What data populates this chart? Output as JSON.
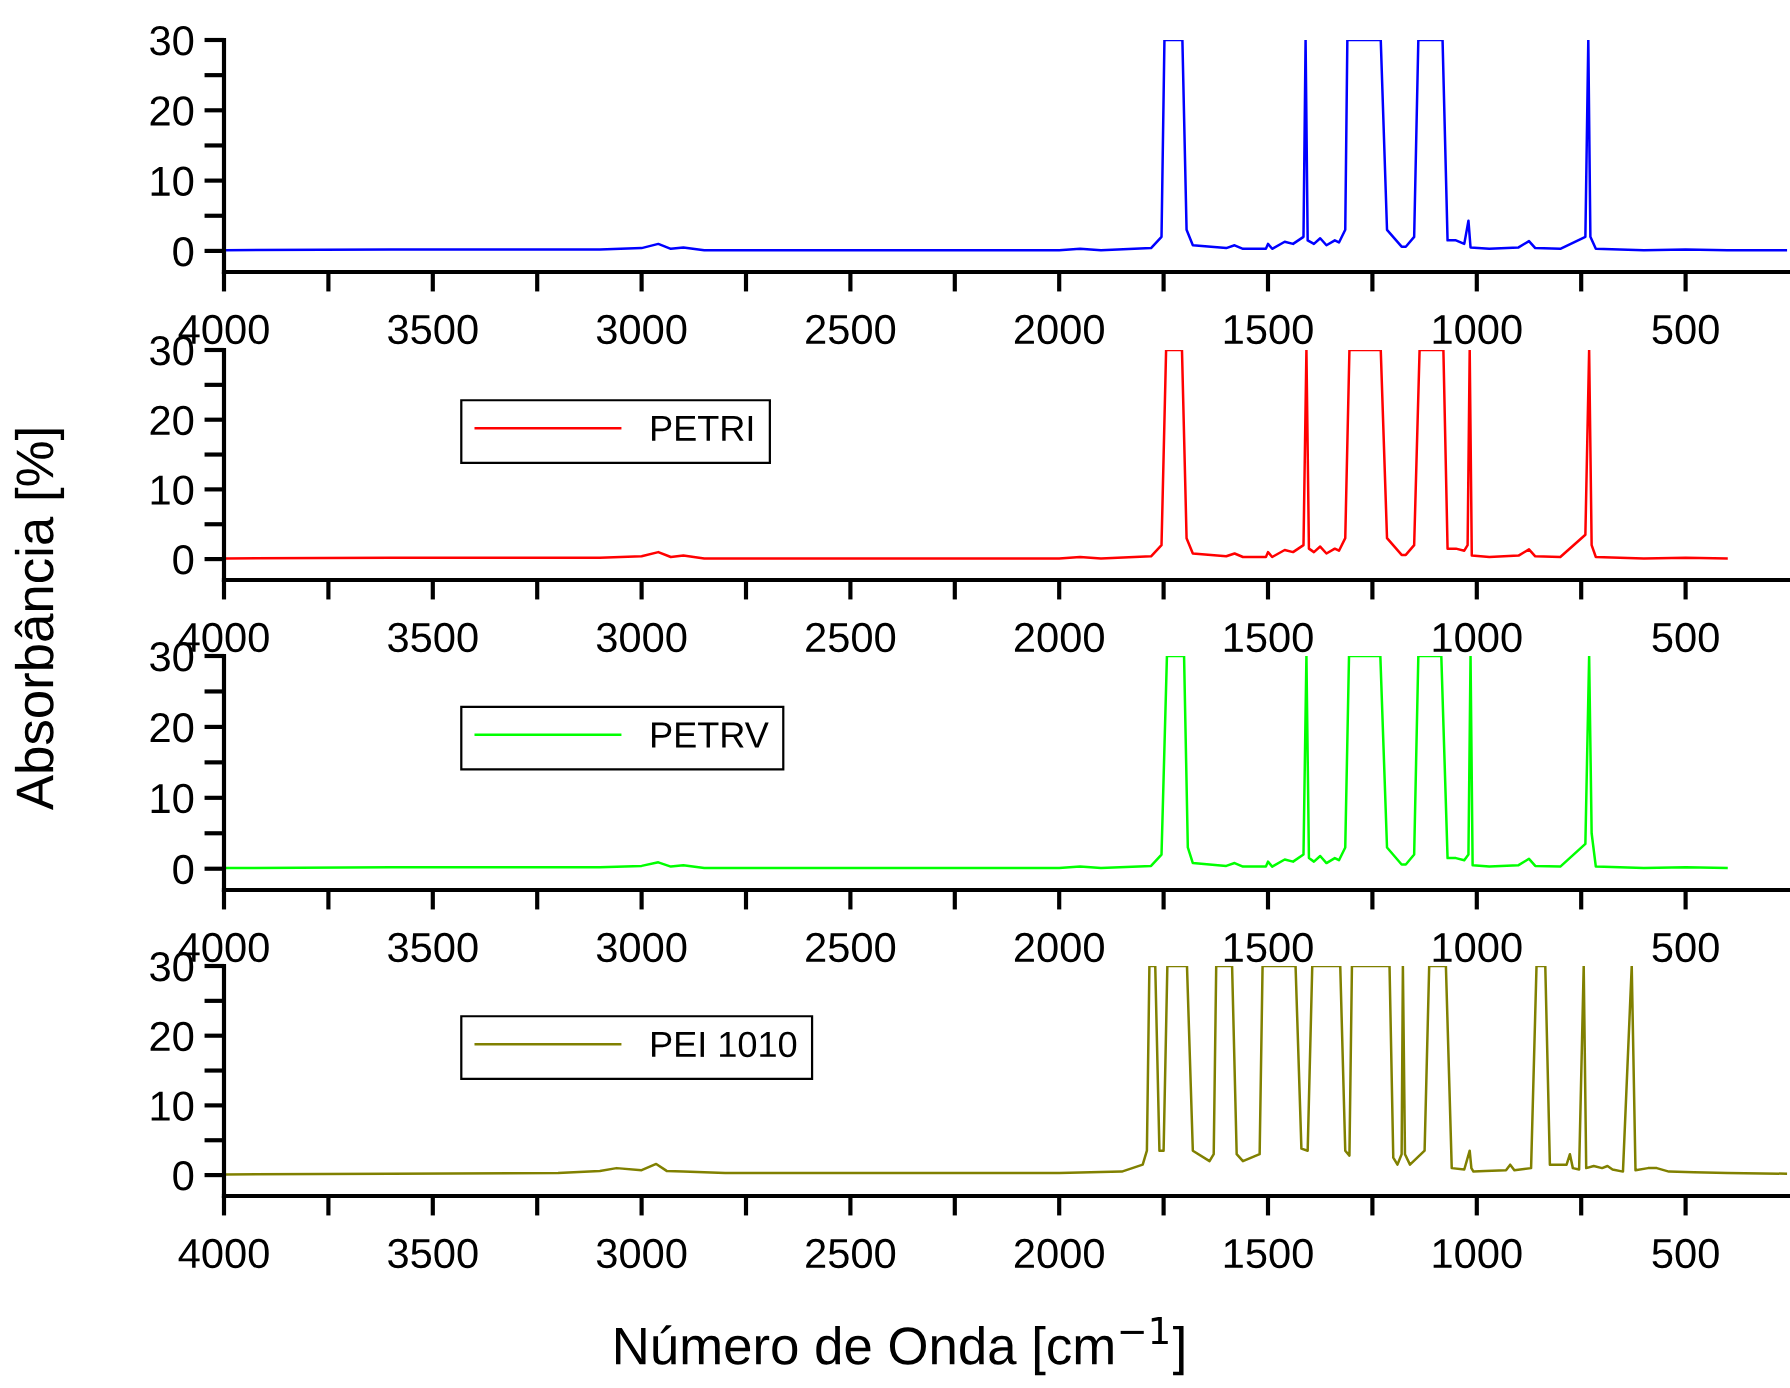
{
  "chart_data": [
    {
      "type": "line",
      "ylabel": "Absorbância [%]",
      "xlim": [
        4000,
        250
      ],
      "ylim": [
        -3,
        30
      ],
      "legend": false,
      "grid": false,
      "xticks": [
        4000,
        {
          "value": 3750,
          "label": null
        },
        3500,
        {
          "value": 3250,
          "label": null
        },
        3000,
        {
          "value": 2750,
          "label": null
        },
        2500,
        {
          "value": 2250,
          "label": null
        },
        2000,
        {
          "value": 1750,
          "label": null
        },
        1500,
        {
          "value": 1250,
          "label": null
        },
        1000,
        {
          "value": 750,
          "label": null
        },
        500
      ],
      "yticks": [
        0,
        {
          "value": 5,
          "label": null
        },
        10,
        {
          "value": 15,
          "label": null
        },
        20,
        {
          "value": 25,
          "label": null
        },
        30
      ],
      "series": [
        {
          "color": "#0000ff",
          "x": [
            4000,
            3600,
            3100,
            3000,
            2960,
            2930,
            2900,
            2850,
            2000,
            1950,
            1900,
            1780,
            1755,
            1748,
            1705,
            1695,
            1680,
            1600,
            1580,
            1560,
            1505,
            1500,
            1490,
            1460,
            1440,
            1415,
            1410,
            1405,
            1390,
            1375,
            1360,
            1340,
            1330,
            1315,
            1310,
            1230,
            1215,
            1180,
            1170,
            1150,
            1140,
            1082,
            1070,
            1050,
            1030,
            1020,
            1015,
            970,
            900,
            875,
            860,
            800,
            740,
            733,
            728,
            715,
            600,
            500,
            400,
            260
          ],
          "values": [
            0.1,
            0.2,
            0.2,
            0.4,
            1.0,
            0.3,
            0.5,
            0.1,
            0.1,
            0.3,
            0.1,
            0.4,
            2,
            30,
            30,
            3,
            0.8,
            0.4,
            0.8,
            0.3,
            0.3,
            1.0,
            0.3,
            1.3,
            1.0,
            2,
            30,
            1.5,
            1.0,
            1.8,
            0.8,
            1.5,
            1.2,
            3,
            30,
            30,
            3,
            0.6,
            0.6,
            2,
            30,
            30,
            1.5,
            1.5,
            1.0,
            4.3,
            0.5,
            0.3,
            0.5,
            1.4,
            0.4,
            0.3,
            2,
            30,
            2,
            0.3,
            0.1,
            0.2,
            0.1,
            0.1
          ]
        }
      ]
    },
    {
      "type": "line",
      "xlim": [
        4000,
        250
      ],
      "ylim": [
        -3,
        30
      ],
      "legend": "top left",
      "grid": false,
      "xticks": [
        4000,
        {
          "value": 3750,
          "label": null
        },
        3500,
        {
          "value": 3250,
          "label": null
        },
        3000,
        {
          "value": 2750,
          "label": null
        },
        2500,
        {
          "value": 2250,
          "label": null
        },
        2000,
        {
          "value": 1750,
          "label": null
        },
        1500,
        {
          "value": 1250,
          "label": null
        },
        1000,
        {
          "value": 750,
          "label": null
        },
        500
      ],
      "yticks": [
        0,
        {
          "value": 5,
          "label": null
        },
        10,
        {
          "value": 15,
          "label": null
        },
        20,
        {
          "value": 25,
          "label": null
        },
        30
      ],
      "series": [
        {
          "name": "PETRI",
          "color": "#ff0000",
          "x": [
            4000,
            3600,
            3100,
            3000,
            2960,
            2930,
            2900,
            2850,
            2000,
            1950,
            1900,
            1780,
            1755,
            1744,
            1706,
            1695,
            1680,
            1600,
            1580,
            1560,
            1505,
            1500,
            1490,
            1460,
            1440,
            1415,
            1408,
            1402,
            1390,
            1375,
            1360,
            1340,
            1330,
            1315,
            1305,
            1230,
            1215,
            1180,
            1170,
            1150,
            1137,
            1080,
            1070,
            1050,
            1030,
            1022,
            1017,
            1012,
            970,
            900,
            875,
            860,
            800,
            740,
            731,
            725,
            715,
            600,
            500,
            402
          ],
          "values": [
            0.1,
            0.2,
            0.2,
            0.4,
            1.0,
            0.3,
            0.5,
            0.1,
            0.1,
            0.3,
            0.1,
            0.4,
            2,
            30,
            30,
            3,
            0.8,
            0.4,
            0.8,
            0.3,
            0.3,
            1.0,
            0.3,
            1.3,
            1.0,
            2,
            30,
            1.5,
            1.0,
            1.8,
            0.8,
            1.5,
            1.2,
            3,
            30,
            30,
            3,
            0.6,
            0.6,
            2,
            30,
            30,
            1.5,
            1.5,
            1.2,
            2,
            30,
            0.5,
            0.3,
            0.5,
            1.4,
            0.4,
            0.3,
            3.5,
            30,
            2,
            0.3,
            0.1,
            0.2,
            0.1
          ]
        }
      ]
    },
    {
      "type": "line",
      "xlim": [
        4000,
        250
      ],
      "ylim": [
        -3,
        30
      ],
      "legend": "top left",
      "grid": false,
      "xticks": [
        4000,
        {
          "value": 3750,
          "label": null
        },
        3500,
        {
          "value": 3250,
          "label": null
        },
        3000,
        {
          "value": 2750,
          "label": null
        },
        2500,
        {
          "value": 2250,
          "label": null
        },
        2000,
        {
          "value": 1750,
          "label": null
        },
        1500,
        {
          "value": 1250,
          "label": null
        },
        1000,
        {
          "value": 750,
          "label": null
        },
        500
      ],
      "yticks": [
        0,
        {
          "value": 5,
          "label": null
        },
        10,
        {
          "value": 15,
          "label": null
        },
        20,
        {
          "value": 25,
          "label": null
        },
        30
      ],
      "series": [
        {
          "name": "PETRV",
          "color": "#00ff00",
          "x": [
            4000,
            3600,
            3100,
            3000,
            2960,
            2930,
            2900,
            2850,
            2000,
            1950,
            1900,
            1780,
            1755,
            1742,
            1701,
            1692,
            1680,
            1600,
            1580,
            1560,
            1505,
            1500,
            1490,
            1460,
            1440,
            1415,
            1408,
            1402,
            1390,
            1375,
            1360,
            1340,
            1330,
            1315,
            1306,
            1231,
            1215,
            1180,
            1170,
            1150,
            1140,
            1085,
            1070,
            1050,
            1030,
            1020,
            1015,
            1010,
            970,
            900,
            875,
            860,
            800,
            740,
            731,
            725,
            715,
            600,
            500,
            402
          ],
          "values": [
            0.1,
            0.2,
            0.2,
            0.4,
            0.9,
            0.3,
            0.5,
            0.1,
            0.1,
            0.3,
            0.1,
            0.4,
            2,
            30,
            30,
            3,
            0.8,
            0.4,
            0.8,
            0.3,
            0.3,
            1.0,
            0.3,
            1.3,
            1.0,
            2,
            30,
            1.5,
            1.0,
            1.8,
            0.8,
            1.5,
            1.2,
            3,
            30,
            30,
            3,
            0.6,
            0.6,
            2,
            30,
            30,
            1.5,
            1.5,
            1.2,
            2,
            30,
            0.5,
            0.3,
            0.5,
            1.4,
            0.4,
            0.3,
            3.5,
            30,
            5,
            0.3,
            0.1,
            0.2,
            0.1
          ]
        }
      ]
    },
    {
      "type": "line",
      "xlabel": "Número de Onda [cm$^{−1}$]",
      "xlim": [
        4000,
        250
      ],
      "ylim": [
        -3,
        30
      ],
      "legend": "top left",
      "grid": false,
      "xticks": [
        4000,
        {
          "value": 3750,
          "label": null
        },
        3500,
        {
          "value": 3250,
          "label": null
        },
        3000,
        {
          "value": 2750,
          "label": null
        },
        2500,
        {
          "value": 2250,
          "label": null
        },
        2000,
        {
          "value": 1750,
          "label": null
        },
        1500,
        {
          "value": 1250,
          "label": null
        },
        1000,
        {
          "value": 750,
          "label": null
        },
        500
      ],
      "yticks": [
        0,
        {
          "value": 5,
          "label": null
        },
        10,
        {
          "value": 15,
          "label": null
        },
        20,
        {
          "value": 25,
          "label": null
        },
        30
      ],
      "series": [
        {
          "name": "PEI 1010",
          "color": "#808000",
          "x": [
            4000,
            3600,
            3200,
            3100,
            3060,
            3000,
            2965,
            2940,
            2900,
            2800,
            2000,
            1850,
            1800,
            1790,
            1784,
            1770,
            1760,
            1750,
            1741,
            1694,
            1680,
            1640,
            1630,
            1624,
            1586,
            1575,
            1560,
            1520,
            1513,
            1434,
            1420,
            1405,
            1394,
            1327,
            1315,
            1305,
            1299,
            1209,
            1200,
            1190,
            1180,
            1177,
            1172,
            1160,
            1125,
            1114,
            1074,
            1060,
            1030,
            1017,
            1013,
            1008,
            980,
            930,
            920,
            910,
            870,
            857,
            836,
            825,
            800,
            785,
            777,
            770,
            755,
            744,
            738,
            720,
            700,
            687,
            675,
            650,
            629,
            620,
            590,
            569,
            540,
            480,
            400,
            260
          ],
          "values": [
            0.1,
            0.2,
            0.3,
            0.6,
            1.0,
            0.7,
            1.6,
            0.6,
            0.5,
            0.3,
            0.3,
            0.5,
            1.5,
            3.5,
            30,
            30,
            3.5,
            3.5,
            30,
            30,
            3.5,
            2,
            3,
            30,
            30,
            3,
            2,
            3,
            30,
            30,
            3.8,
            3.5,
            30,
            30,
            3.5,
            2.8,
            30,
            30,
            2.5,
            1.5,
            3,
            30,
            3,
            1.5,
            3.5,
            30,
            30,
            1,
            0.8,
            3.5,
            1,
            0.5,
            0.6,
            0.7,
            1.5,
            0.7,
            1.0,
            30,
            30,
            1.5,
            1.5,
            1.5,
            3,
            1.0,
            0.8,
            30,
            1.0,
            1.3,
            1.0,
            1.3,
            0.8,
            0.5,
            30,
            0.7,
            1.0,
            1.0,
            0.5,
            0.4,
            0.3,
            0.2
          ]
        }
      ]
    }
  ]
}
